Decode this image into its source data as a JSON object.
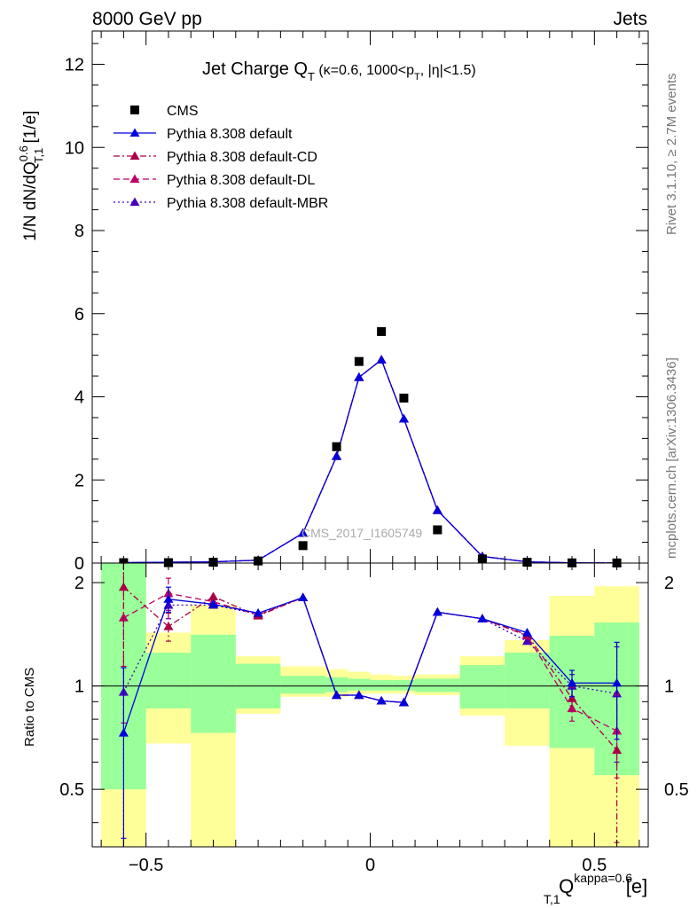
{
  "header": {
    "left": "8000 GeV pp",
    "right": "Jets"
  },
  "side_labels": {
    "rivet": "Rivet 3.1.10, ≥ 2.7M events",
    "mcplots": "mcplots.cern.ch [arXiv:1306.3436]"
  },
  "chart_data": [
    {
      "type": "scatter",
      "title": "Jet Charge Q_T (κ=0.6, 1000<p_T, |η|<1.5)",
      "title_parts": {
        "main": "Jet Charge Q",
        "sub": "T",
        "rest1": " (κ=0.6, 1000<p",
        "sub2": "T",
        "rest2": ", |η|<1.5)"
      },
      "ylabel": "1/N dN/dQ^{0.6}_{T,1} [1/e]",
      "ylabel_parts": {
        "main": "1/N dN/dQ",
        "sup": "0.6",
        "sub": "T,1",
        "rest": " [1/e]"
      },
      "watermark": "CMS_2017_I1605749",
      "xlim": [
        -0.62,
        0.62
      ],
      "ylim": [
        0,
        12.8
      ],
      "yticks": [
        0,
        2,
        4,
        6,
        8,
        10,
        12
      ],
      "grid": false,
      "legend_position": "top-left",
      "x": [
        -0.55,
        -0.45,
        -0.35,
        -0.25,
        -0.15,
        -0.075,
        -0.025,
        0.025,
        0.075,
        0.15,
        0.25,
        0.35,
        0.45,
        0.55
      ],
      "series": [
        {
          "name": "CMS",
          "color": "#000000",
          "marker": "square",
          "dash": "none",
          "values": [
            0.01,
            0.01,
            0.02,
            0.05,
            0.42,
            2.8,
            4.85,
            5.57,
            3.97,
            0.8,
            0.1,
            0.02,
            0.005,
            0.003
          ]
        },
        {
          "name": "Pythia 8.308 default",
          "color": "#0000dd",
          "marker": "triangle",
          "dash": "solid",
          "values": [
            0.01,
            0.02,
            0.03,
            0.07,
            0.72,
            2.57,
            4.47,
            4.89,
            3.47,
            1.27,
            0.16,
            0.03,
            0.006,
            0.003
          ]
        },
        {
          "name": "Pythia 8.308 default-CD",
          "color": "#aa0044",
          "marker": "triangle",
          "dash": "dashdot",
          "values": [
            0.01,
            0.02,
            0.03,
            0.07,
            0.72,
            2.57,
            4.47,
            4.89,
            3.47,
            1.27,
            0.16,
            0.03,
            0.006,
            0.003
          ]
        },
        {
          "name": "Pythia 8.308 default-DL",
          "color": "#bb0066",
          "marker": "triangle",
          "dash": "dashed",
          "values": [
            0.01,
            0.02,
            0.03,
            0.07,
            0.72,
            2.57,
            4.47,
            4.89,
            3.47,
            1.27,
            0.16,
            0.03,
            0.006,
            0.003
          ]
        },
        {
          "name": "Pythia 8.308 default-MBR",
          "color": "#4400bb",
          "marker": "triangle",
          "dash": "dotted",
          "values": [
            0.01,
            0.02,
            0.03,
            0.07,
            0.72,
            2.57,
            4.47,
            4.89,
            3.47,
            1.27,
            0.16,
            0.03,
            0.006,
            0.003
          ]
        }
      ]
    },
    {
      "type": "scatter",
      "ylabel": "Ratio to CMS",
      "xlabel": "Q_{T,1}^{kappa=0.6} [e]",
      "xlabel_parts": {
        "main": "Q",
        "sup": "kappa=0.6",
        "sub": "T,1",
        "rest": " [e]"
      },
      "xlim": [
        -0.62,
        0.62
      ],
      "ylim": [
        0.34,
        2.28
      ],
      "yscale": "log",
      "yticks": [
        0.5,
        1,
        2
      ],
      "xticks": [
        -0.5,
        0,
        0.5
      ],
      "bin_edges": [
        -0.6,
        -0.5,
        -0.4,
        -0.3,
        -0.2,
        -0.1,
        -0.05,
        0,
        0.05,
        0.1,
        0.2,
        0.3,
        0.4,
        0.5,
        0.6
      ],
      "bands": {
        "yellow": {
          "color": "#ffff99",
          "low": [
            0.3,
            0.68,
            0.3,
            0.83,
            0.93,
            0.93,
            0.95,
            0.95,
            0.95,
            0.94,
            0.82,
            0.67,
            0.3,
            0.3
          ],
          "high": [
            2.3,
            1.43,
            1.72,
            1.22,
            1.14,
            1.12,
            1.1,
            1.08,
            1.07,
            1.08,
            1.22,
            1.36,
            1.83,
            1.95
          ]
        },
        "green": {
          "color": "#99ff99",
          "low": [
            0.5,
            0.86,
            0.73,
            0.86,
            0.95,
            0.96,
            0.97,
            0.97,
            0.97,
            0.96,
            0.86,
            0.86,
            0.66,
            0.55
          ],
          "high": [
            2.3,
            1.25,
            1.41,
            1.16,
            1.07,
            1.06,
            1.05,
            1.04,
            1.04,
            1.05,
            1.15,
            1.25,
            1.4,
            1.53
          ]
        }
      },
      "series": [
        {
          "name": "Pythia 8.308 default",
          "color": "#0000dd",
          "dash": "solid",
          "values": [
            0.73,
            1.79,
            1.73,
            1.63,
            1.81,
            0.94,
            0.94,
            0.905,
            0.895,
            1.64,
            1.57,
            1.43,
            1.02,
            1.02
          ],
          "err": [
            0.4,
            0.15,
            0.03,
            0.02,
            0.02,
            0.01,
            0.01,
            0.01,
            0.01,
            0.02,
            0.02,
            0.03,
            0.09,
            0.32
          ]
        },
        {
          "name": "Pythia 8.308 default-CD",
          "color": "#aa0044",
          "dash": "dashdot",
          "values": [
            1.94,
            1.49,
            1.82,
            1.6,
            1.81,
            0.94,
            0.94,
            0.905,
            0.895,
            1.64,
            1.57,
            1.41,
            0.92,
            0.65
          ],
          "err": [
            0.8,
            0.14,
            0.05,
            0.02,
            0.02,
            0.01,
            0.01,
            0.01,
            0.01,
            0.02,
            0.02,
            0.03,
            0.07,
            0.3
          ]
        },
        {
          "name": "Pythia 8.308 default-DL",
          "color": "#bb0066",
          "dash": "dashed",
          "values": [
            1.58,
            1.86,
            1.76,
            1.61,
            1.81,
            0.94,
            0.94,
            0.905,
            0.895,
            1.64,
            1.57,
            1.4,
            0.86,
            0.74
          ],
          "err": [
            0.8,
            0.2,
            0.06,
            0.02,
            0.02,
            0.01,
            0.01,
            0.01,
            0.01,
            0.02,
            0.02,
            0.03,
            0.07,
            0.2
          ]
        },
        {
          "name": "Pythia 8.308 default-MBR",
          "color": "#4400bb",
          "dash": "dotted",
          "values": [
            0.96,
            1.72,
            1.72,
            1.62,
            1.81,
            0.94,
            0.94,
            0.905,
            0.895,
            1.64,
            1.57,
            1.35,
            1.0,
            0.95
          ],
          "err": [
            0.6,
            0.15,
            0.04,
            0.02,
            0.02,
            0.01,
            0.01,
            0.01,
            0.01,
            0.02,
            0.02,
            0.03,
            0.08,
            0.35
          ]
        }
      ]
    }
  ]
}
